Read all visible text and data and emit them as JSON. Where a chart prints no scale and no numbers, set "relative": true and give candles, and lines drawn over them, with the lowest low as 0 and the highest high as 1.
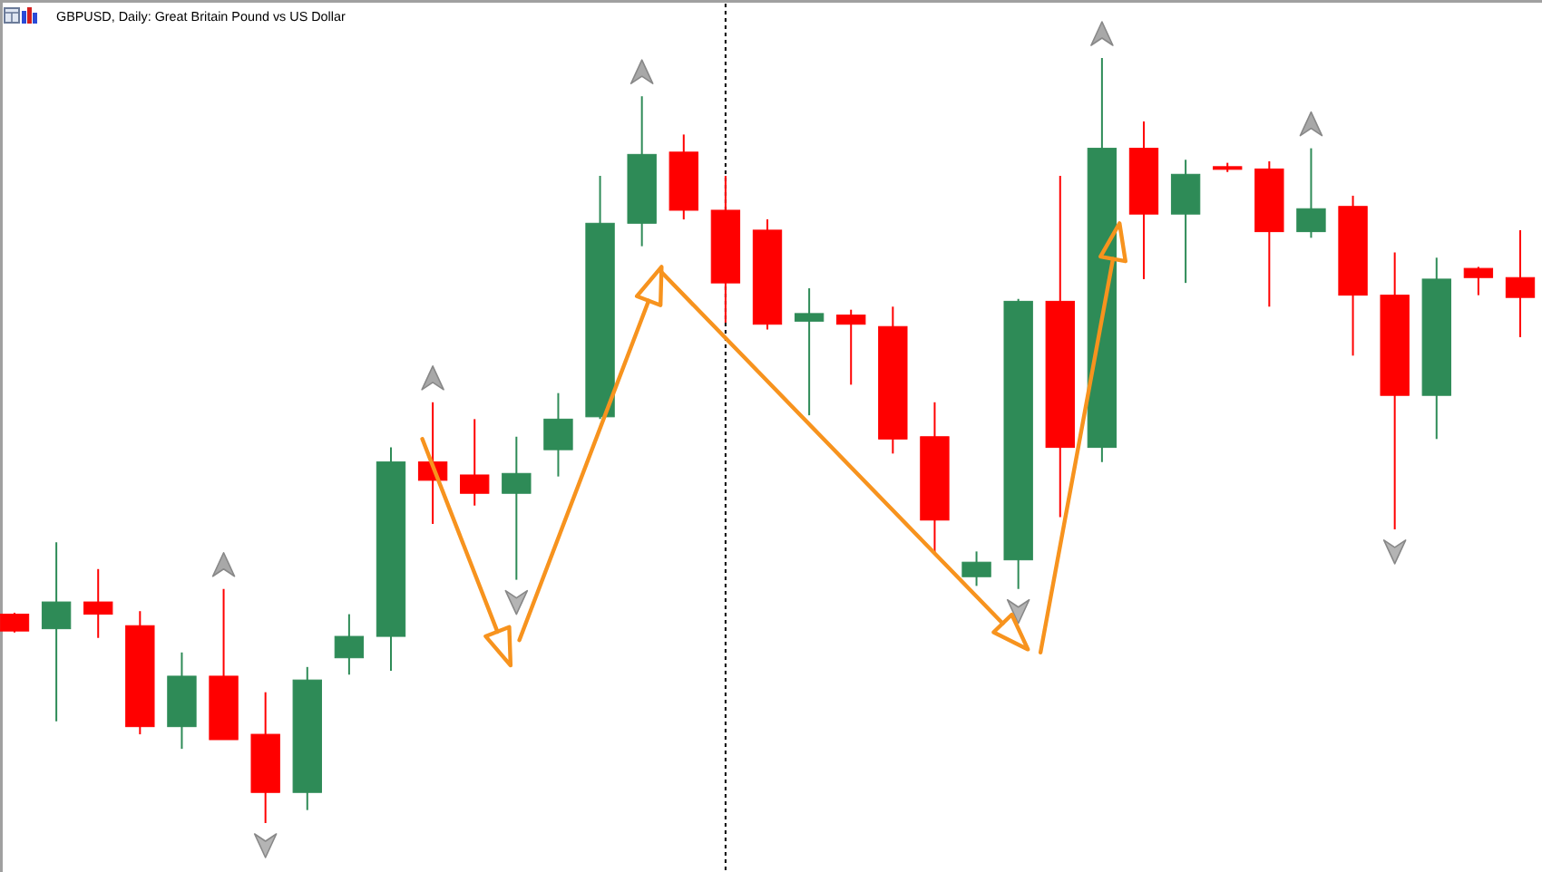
{
  "chart_data": {
    "type": "candlestick",
    "title": "GBPUSD, Daily: Great Britain Pound vs US Dollar",
    "relative": true,
    "categories": [
      null,
      null,
      null,
      null,
      null,
      null,
      null,
      null,
      null,
      null,
      null,
      null,
      null,
      null,
      null,
      null,
      null,
      null,
      null,
      null,
      null,
      null,
      null,
      null,
      null,
      null,
      null,
      null,
      null,
      null,
      null,
      null,
      null,
      null,
      null,
      null,
      null
    ],
    "ohlc": [
      [
        0.273,
        0.275,
        0.249,
        0.251
      ],
      [
        0.254,
        0.367,
        0.133,
        0.289
      ],
      [
        0.289,
        0.332,
        0.242,
        0.273
      ],
      [
        0.258,
        0.277,
        0.116,
        0.126
      ],
      [
        0.126,
        0.223,
        0.097,
        0.192
      ],
      [
        0.192,
        0.306,
        0.109,
        0.109
      ],
      [
        0.116,
        0.171,
        0,
        0.04
      ],
      [
        0.04,
        0.204,
        0.017,
        0.187
      ],
      [
        0.216,
        0.273,
        0.194,
        0.244
      ],
      [
        0.244,
        0.491,
        0.199,
        0.472
      ],
      [
        0.472,
        0.55,
        0.391,
        0.448
      ],
      [
        0.455,
        0.528,
        0.415,
        0.431
      ],
      [
        0.431,
        0.505,
        0.318,
        0.457
      ],
      [
        0.488,
        0.562,
        0.453,
        0.528
      ],
      [
        0.531,
        0.846,
        0.528,
        0.784
      ],
      [
        0.784,
        0.95,
        0.754,
        0.874
      ],
      [
        0.877,
        0.9,
        0.789,
        0.801
      ],
      [
        0.801,
        0.846,
        0.654,
        0.706
      ],
      [
        0.775,
        0.789,
        0.645,
        0.652
      ],
      [
        0.656,
        0.699,
        0.533,
        0.666
      ],
      [
        0.664,
        0.671,
        0.573,
        0.652
      ],
      [
        0.649,
        0.675,
        0.483,
        0.502
      ],
      [
        0.505,
        0.55,
        0.353,
        0.396
      ],
      [
        0.322,
        0.355,
        0.31,
        0.341
      ],
      [
        0.344,
        0.685,
        0.306,
        0.682
      ],
      [
        0.682,
        0.846,
        0.4,
        0.491
      ],
      [
        0.491,
        1,
        0.472,
        0.882
      ],
      [
        0.882,
        0.917,
        0.711,
        0.796
      ],
      [
        0.796,
        0.867,
        0.706,
        0.848
      ],
      [
        0.858,
        0.863,
        0.851,
        0.855
      ],
      [
        0.855,
        0.865,
        0.675,
        0.773
      ],
      [
        0.773,
        0.882,
        0.765,
        0.803
      ],
      [
        0.806,
        0.82,
        0.611,
        0.69
      ],
      [
        0.69,
        0.746,
        0.384,
        0.559
      ],
      [
        0.559,
        0.739,
        0.502,
        0.711
      ],
      [
        0.725,
        0.727,
        0.69,
        0.713
      ],
      [
        0.713,
        0.775,
        0.635,
        0.687
      ]
    ],
    "colors": [
      "#ff0000",
      "#2e8b57",
      "#ff0000",
      "#ff0000",
      "#2e8b57",
      "#ff0000",
      "#ff0000",
      "#2e8b57",
      "#2e8b57",
      "#2e8b57",
      "#ff0000",
      "#ff0000",
      "#2e8b57",
      "#2e8b57",
      "#2e8b57",
      "#2e8b57",
      "#ff0000",
      "#ff0000",
      "#ff0000",
      "#2e8b57",
      "#ff0000",
      "#ff0000",
      "#ff0000",
      "#2e8b57",
      "#2e8b57",
      "#ff0000",
      "#2e8b57",
      "#ff0000",
      "#2e8b57",
      "#ff0000",
      "#ff0000",
      "#2e8b57",
      "#ff0000",
      "#ff0000",
      "#2e8b57",
      "#ff0000",
      "#ff0000"
    ]
  }
}
